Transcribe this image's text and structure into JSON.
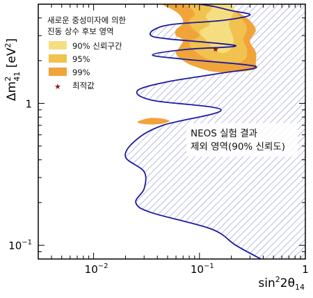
{
  "chart_data": {
    "type": "area",
    "x_scale": "log",
    "y_scale": "log",
    "xlim": [
      0.003,
      1
    ],
    "ylim": [
      0.08,
      5
    ],
    "x_ticks": [
      {
        "value": 0.01,
        "base": "10",
        "exp": "−2"
      },
      {
        "value": 0.1,
        "base": "10",
        "exp": "−1"
      },
      {
        "value": 1,
        "label": "1"
      }
    ],
    "y_ticks": [
      {
        "value": 0.1,
        "base": "10",
        "exp": "−1"
      },
      {
        "value": 1,
        "label": "1"
      }
    ],
    "xlabel": {
      "main": "sin",
      "sup": "2",
      "mid": "2θ",
      "sub": "14"
    },
    "ylabel": {
      "main": "Δm",
      "sup": "2",
      "sub": "41",
      "unit": " [eV",
      "unit_sup": "2",
      "close": "]"
    },
    "legend": {
      "title_lines": [
        "새로운 중성미자에 의한",
        "진동 상수 후보 영역"
      ],
      "entries": [
        {
          "label": "90% 신뢰구간",
          "color": "#f5de80",
          "kind": "box"
        },
        {
          "label": "95%",
          "color": "#f2c24e",
          "kind": "box"
        },
        {
          "label": "99%",
          "color": "#f0a43a",
          "kind": "box"
        },
        {
          "label": "최적값",
          "color": "#8a1a10",
          "kind": "star"
        }
      ]
    },
    "annotation": {
      "lines": [
        "NEOS 실험 결과",
        "제외 영역(90% 신뢰도)"
      ]
    },
    "best_fit": {
      "x": 0.142,
      "y": 2.41
    },
    "series": [
      {
        "label": "NEOS 실험 결과 제외 영역(90% 신뢰도)",
        "color": "#1a1aa0",
        "fill": "hatched",
        "x": [
          0.1,
          0.14,
          0.2,
          0.3,
          0.17,
          0.055,
          0.037,
          0.035,
          0.05,
          0.22,
          0.075,
          0.036,
          0.07,
          0.34,
          0.15,
          0.05,
          0.026,
          0.036,
          0.16,
          0.045,
          0.025,
          0.02,
          0.03,
          0.03,
          0.025,
          0.035,
          0.13,
          0.22,
          0.38
        ],
        "y": [
          5.0,
          4.8,
          4.5,
          4.2,
          3.85,
          3.6,
          3.3,
          3.0,
          2.85,
          2.55,
          2.4,
          2.2,
          2.05,
          1.82,
          1.62,
          1.42,
          1.23,
          1.05,
          0.9,
          0.7,
          0.55,
          0.42,
          0.33,
          0.25,
          0.2,
          0.17,
          0.13,
          0.1,
          0.08
        ]
      },
      {
        "label": "99%",
        "color": "#f0a43a",
        "fill": "solid",
        "regions": [
          {
            "x": [
              0.045,
              0.055,
              0.065,
              0.07,
              0.06,
              0.06,
              0.07,
              0.065,
              0.06,
              0.07,
              0.09,
              0.15,
              0.32,
              0.34,
              0.34,
              0.3,
              0.34,
              0.28,
              0.2,
              0.14,
              0.1,
              0.08,
              0.07
            ],
            "y": [
              5.0,
              4.6,
              4.2,
              3.7,
              3.3,
              3.0,
              2.8,
              2.5,
              2.25,
              2.0,
              1.82,
              1.66,
              1.72,
              1.95,
              2.3,
              2.75,
              3.3,
              4.0,
              4.6,
              5.0,
              5.0,
              5.0,
              5.0
            ]
          },
          {
            "x": [
              0.028,
              0.035,
              0.045,
              0.052,
              0.045,
              0.035,
              0.028,
              0.026
            ],
            "y": [
              0.76,
              0.79,
              0.78,
              0.75,
              0.72,
              0.71,
              0.72,
              0.74
            ]
          }
        ]
      },
      {
        "label": "95%",
        "color": "#f2c24e",
        "fill": "solid",
        "x": [
          0.075,
          0.085,
          0.09,
          0.08,
          0.085,
          0.1,
          0.08,
          0.09,
          0.12,
          0.2,
          0.27,
          0.28,
          0.26,
          0.28,
          0.24,
          0.18,
          0.12
        ],
        "y": [
          5.0,
          4.6,
          4.2,
          3.8,
          3.4,
          3.0,
          2.65,
          2.35,
          2.05,
          1.9,
          2.05,
          2.4,
          2.8,
          3.4,
          4.1,
          5.0,
          5.0
        ]
      },
      {
        "label": "90% 신뢰구간",
        "color": "#f5de80",
        "fill": "solid",
        "x": [
          0.14,
          0.13,
          0.115,
          0.125,
          0.1,
          0.115,
          0.15,
          0.19,
          0.21,
          0.19,
          0.21,
          0.2
        ],
        "y": [
          5.0,
          4.6,
          4.1,
          3.6,
          3.2,
          2.8,
          2.3,
          2.35,
          2.8,
          3.6,
          4.4,
          5.0
        ]
      }
    ]
  }
}
